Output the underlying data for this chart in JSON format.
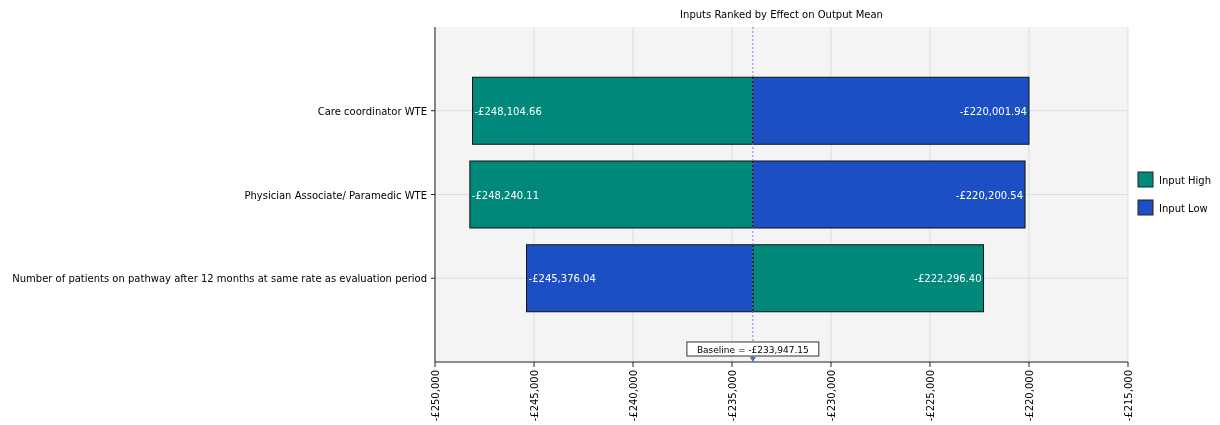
{
  "chart_data": {
    "type": "bar",
    "orientation": "horizontal",
    "title": "Inputs Ranked by Effect on Output Mean",
    "categories": [
      "Care coordinator WTE",
      "Physician Associate/ Paramedic WTE",
      "Number of patients on pathway after 12 months at same rate as evaluation period"
    ],
    "series": [
      {
        "name": "Input High",
        "color": "#00897a",
        "base": [
          -233947.15,
          -233947.15,
          -233947.15
        ],
        "values": [
          -14157.51,
          -14292.96,
          11650.75
        ],
        "value_labels": [
          "-£248,104.66",
          "-£248,240.11",
          "-£222,296.40"
        ]
      },
      {
        "name": "Input Low",
        "color": "#1d4fc4",
        "base": [
          -233947.15,
          -233947.15,
          -233947.15
        ],
        "values": [
          13945.21,
          13746.61,
          -11428.89
        ],
        "value_labels": [
          "-£220,001.94",
          "-£220,200.54",
          "-£245,376.04"
        ]
      }
    ],
    "xlim": [
      -250000,
      -215000
    ],
    "xticks": [
      {
        "value": -250000,
        "label": "-£250,000"
      },
      {
        "value": -245000,
        "label": "-£245,000"
      },
      {
        "value": -240000,
        "label": "-£240,000"
      },
      {
        "value": -235000,
        "label": "-£235,000"
      },
      {
        "value": -230000,
        "label": "-£230,000"
      },
      {
        "value": -225000,
        "label": "-£225,000"
      },
      {
        "value": -220000,
        "label": "-£220,000"
      },
      {
        "value": -215000,
        "label": "-£215,000"
      }
    ],
    "ref_lines": [
      {
        "axis": "x",
        "value": -233947.15,
        "label": "Baseline = -£233,947.15",
        "color": "#6a8fe0",
        "line_style": "dotted"
      }
    ],
    "grid": true,
    "legend": "right"
  }
}
